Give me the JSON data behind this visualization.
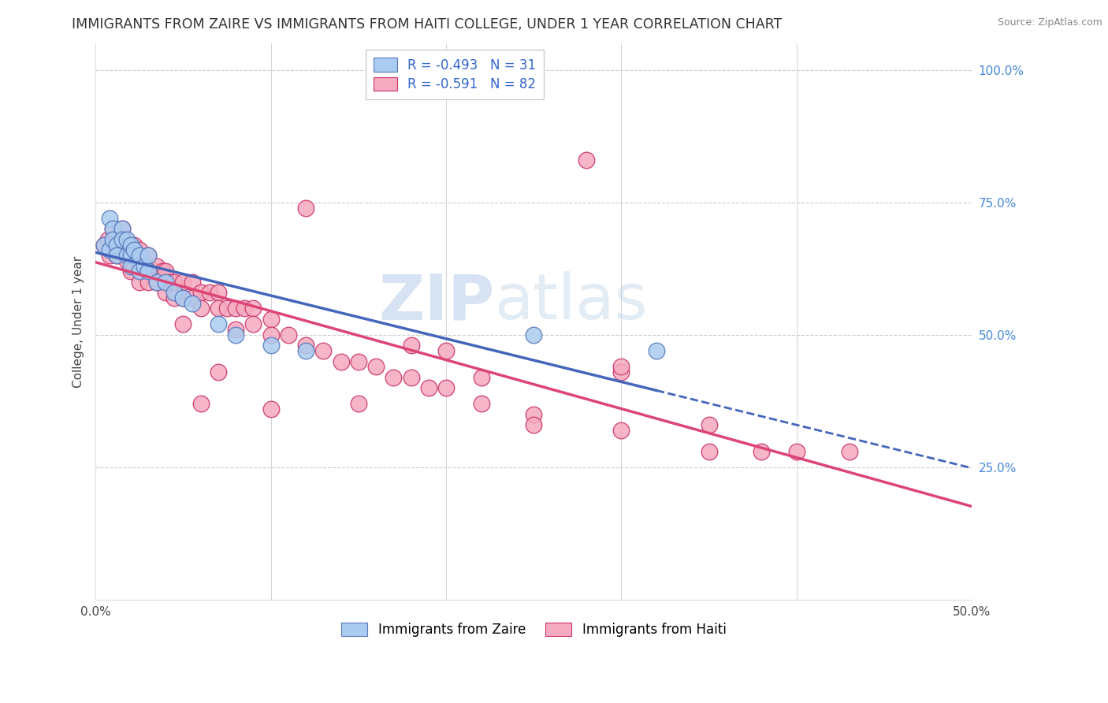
{
  "title": "IMMIGRANTS FROM ZAIRE VS IMMIGRANTS FROM HAITI COLLEGE, UNDER 1 YEAR CORRELATION CHART",
  "source": "Source: ZipAtlas.com",
  "ylabel": "College, Under 1 year",
  "xlim": [
    0.0,
    0.5
  ],
  "ylim": [
    0.0,
    1.05
  ],
  "xtick_positions": [
    0.0,
    0.1,
    0.2,
    0.3,
    0.4,
    0.5
  ],
  "xticklabels": [
    "0.0%",
    "",
    "",
    "",
    "",
    "50.0%"
  ],
  "ytick_positions": [
    0.25,
    0.5,
    0.75,
    1.0
  ],
  "yticklabels_right": [
    "25.0%",
    "50.0%",
    "75.0%",
    "100.0%"
  ],
  "legend_labels": [
    "Immigrants from Zaire",
    "Immigrants from Haiti"
  ],
  "zaire_color": "#aaccf0",
  "haiti_color": "#f5aabf",
  "zaire_edge_color": "#5577bb",
  "haiti_edge_color": "#cc3366",
  "zaire_line_color": "#4466bb",
  "haiti_line_color": "#dd4477",
  "zaire_R": -0.493,
  "zaire_N": 31,
  "haiti_R": -0.591,
  "haiti_N": 82,
  "watermark_zip": "ZIP",
  "watermark_atlas": "atlas",
  "background_color": "#ffffff",
  "grid_color": "#cccccc",
  "title_fontsize": 12.5,
  "source_fontsize": 9,
  "axis_label_fontsize": 11,
  "tick_fontsize": 11,
  "legend_text_color": "#3366cc",
  "right_tick_color": "#4488dd",
  "zaire_scatter_x": [
    0.005,
    0.008,
    0.008,
    0.01,
    0.01,
    0.012,
    0.012,
    0.015,
    0.015,
    0.018,
    0.018,
    0.02,
    0.02,
    0.02,
    0.022,
    0.025,
    0.025,
    0.028,
    0.03,
    0.03,
    0.035,
    0.04,
    0.045,
    0.05,
    0.055,
    0.07,
    0.08,
    0.1,
    0.12,
    0.25,
    0.32
  ],
  "zaire_scatter_y": [
    0.67,
    0.72,
    0.66,
    0.7,
    0.68,
    0.67,
    0.65,
    0.7,
    0.68,
    0.68,
    0.65,
    0.67,
    0.65,
    0.63,
    0.66,
    0.65,
    0.62,
    0.63,
    0.65,
    0.62,
    0.6,
    0.6,
    0.58,
    0.57,
    0.56,
    0.52,
    0.5,
    0.48,
    0.47,
    0.5,
    0.47
  ],
  "haiti_scatter_x": [
    0.005,
    0.007,
    0.008,
    0.01,
    0.01,
    0.012,
    0.012,
    0.013,
    0.015,
    0.015,
    0.016,
    0.018,
    0.018,
    0.02,
    0.02,
    0.02,
    0.022,
    0.022,
    0.025,
    0.025,
    0.025,
    0.028,
    0.03,
    0.03,
    0.03,
    0.033,
    0.035,
    0.035,
    0.038,
    0.04,
    0.04,
    0.042,
    0.045,
    0.045,
    0.05,
    0.05,
    0.055,
    0.055,
    0.06,
    0.06,
    0.065,
    0.07,
    0.07,
    0.075,
    0.08,
    0.085,
    0.09,
    0.09,
    0.1,
    0.1,
    0.11,
    0.12,
    0.13,
    0.14,
    0.15,
    0.16,
    0.17,
    0.18,
    0.19,
    0.2,
    0.22,
    0.25,
    0.28,
    0.3,
    0.35,
    0.4,
    0.08,
    0.12,
    0.18,
    0.22,
    0.25,
    0.3,
    0.15,
    0.1,
    0.05,
    0.06,
    0.07,
    0.3,
    0.2,
    0.35,
    0.38,
    0.43
  ],
  "haiti_scatter_y": [
    0.67,
    0.68,
    0.65,
    0.7,
    0.67,
    0.68,
    0.65,
    0.67,
    0.7,
    0.67,
    0.68,
    0.67,
    0.64,
    0.67,
    0.65,
    0.62,
    0.67,
    0.63,
    0.66,
    0.63,
    0.6,
    0.64,
    0.65,
    0.62,
    0.6,
    0.62,
    0.63,
    0.6,
    0.62,
    0.62,
    0.58,
    0.6,
    0.6,
    0.57,
    0.6,
    0.57,
    0.6,
    0.57,
    0.58,
    0.55,
    0.58,
    0.58,
    0.55,
    0.55,
    0.55,
    0.55,
    0.55,
    0.52,
    0.53,
    0.5,
    0.5,
    0.48,
    0.47,
    0.45,
    0.45,
    0.44,
    0.42,
    0.42,
    0.4,
    0.4,
    0.37,
    0.35,
    0.83,
    0.43,
    0.28,
    0.28,
    0.51,
    0.74,
    0.48,
    0.42,
    0.33,
    0.32,
    0.37,
    0.36,
    0.52,
    0.37,
    0.43,
    0.44,
    0.47,
    0.33,
    0.28,
    0.28
  ]
}
